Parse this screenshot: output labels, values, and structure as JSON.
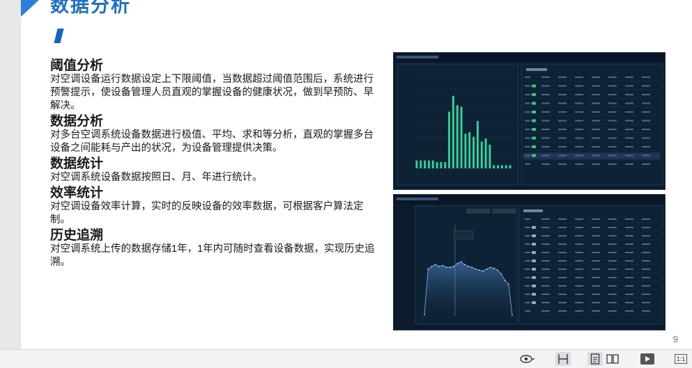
{
  "slide": {
    "title": "数据分析",
    "page_number": "9"
  },
  "sections": [
    {
      "heading": "阈值分析",
      "body": "对空调设备运行数据设定上下限阈值，当数据超过阈值范围后，系统进行预警提示，使设备管理人员直观的掌握设备的健康状况，做到早预防、早解决。"
    },
    {
      "heading": "数据分析",
      "body": "对多台空调系统设备数据进行极值、平均、求和等分析，直观的掌握多台设备之间能耗与产出的状况，为设备管理提供决策。"
    },
    {
      "heading": "数据统计",
      "body": "对空调系统设备数据按照日、月、年进行统计。"
    },
    {
      "heading": "效率统计",
      "body": "对空调设备效率计算，实时的反映设备的效率数据，可根据客户算法定制。"
    },
    {
      "heading": "历史追溯",
      "body": "对空调系统上传的数据存储1年，1年内可随时查看设备数据，实现历史追溯。"
    }
  ],
  "statusbar": {
    "fit_label": "1:1"
  },
  "colors": {
    "accent": "#1f6fc6",
    "panel_bg": "#0c1a2c",
    "bar_green": "#2fd49a",
    "area_blue": "#4f87c4"
  },
  "chart_data": [
    {
      "type": "bar",
      "title": "",
      "series": [
        {
          "name": "bars",
          "values": [
            0.5,
            0.5,
            0.5,
            0.5,
            0.5,
            0.4,
            0.4,
            0.4,
            3.6,
            4.6,
            4.0,
            3.9,
            2.2,
            2.3,
            2.0,
            3.0,
            1.7,
            1.9,
            1.5,
            0.2,
            0.2,
            0.2,
            0.2,
            0.2
          ]
        }
      ],
      "ylim": [
        0,
        6
      ]
    },
    {
      "type": "area",
      "title": "",
      "values": [
        1.2,
        50,
        53,
        55,
        53,
        54,
        52,
        52,
        53,
        56,
        58,
        55,
        53,
        52,
        50,
        49,
        48,
        50,
        52,
        51,
        49,
        45,
        38,
        34,
        0.8
      ],
      "ylim": [
        0,
        100
      ]
    }
  ]
}
